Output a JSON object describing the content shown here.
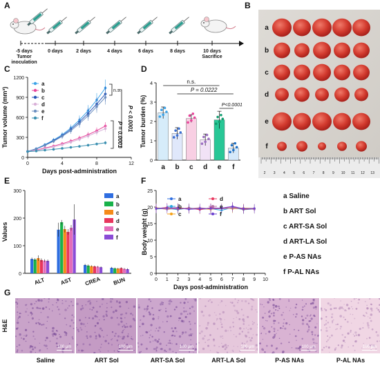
{
  "panel_letters": [
    "A",
    "B",
    "C",
    "D",
    "E",
    "F",
    "G"
  ],
  "timeline": {
    "days": [
      "-5 days\nTumor\ninoculation",
      "0 days",
      "2 days",
      "4 days",
      "6 days",
      "8 days",
      "10 days\nSacrifice"
    ]
  },
  "tumor_photo": {
    "row_labels": [
      "a",
      "b",
      "c",
      "d",
      "e",
      "f"
    ],
    "ruler_numbers": [
      "2",
      "3",
      "4",
      "5",
      "6",
      "7",
      "8",
      "9",
      "10",
      "11",
      "12",
      "13"
    ]
  },
  "legend_text": [
    "a Saline",
    "b ART Sol",
    "c ART-SA Sol",
    "d ART-LA Sol",
    "e P-AS NAs",
    "f P-AL NAs"
  ],
  "colors": {
    "a": "#3da3e8",
    "b": "#e8449a",
    "c": "#2553b5",
    "d": "#d9b0d8",
    "e": "#6c8fc0",
    "f": "#3a8fb0"
  },
  "panelC": {
    "ylabel": "Tumor volume (mm³)",
    "xlabel": "Days post-administration",
    "yticks": [
      "0",
      "300",
      "600",
      "900",
      "1200"
    ],
    "xticks": [
      "0",
      "4",
      "8",
      "12"
    ],
    "annotations": [
      "n.s.",
      "P < 0.0001",
      "P = 0.0001"
    ],
    "legend": [
      "a",
      "b",
      "c",
      "d",
      "e",
      "f"
    ]
  },
  "panelD": {
    "ylabel": "Tumor burden (%)",
    "yticks": [
      "0",
      "1",
      "2",
      "3",
      "4"
    ],
    "categories": [
      "a",
      "b",
      "c",
      "d",
      "e",
      "f"
    ],
    "annotations": [
      "n.s.",
      "P = 0.0222",
      "P<0.0001"
    ]
  },
  "panelE": {
    "ylabel": "Values",
    "yticks": [
      "0",
      "100",
      "200",
      "300"
    ],
    "categories": [
      "ALT",
      "AST",
      "CREA",
      "BUN"
    ],
    "legend": [
      "a",
      "b",
      "c",
      "d",
      "e",
      "f"
    ]
  },
  "panelF": {
    "ylabel": "Body weight (g)",
    "xlabel": "Days post-administration",
    "yticks": [
      "0",
      "5",
      "10",
      "15",
      "20",
      "25"
    ],
    "xticks": [
      "0",
      "1",
      "2",
      "3",
      "4",
      "5",
      "6",
      "7",
      "8",
      "9",
      "10"
    ],
    "legend": [
      "a",
      "b",
      "c",
      "d",
      "e",
      "f"
    ]
  },
  "panelG": {
    "side_label": "H&E",
    "scale": "100 μm",
    "labels": [
      "Saline",
      "ART Sol",
      "ART-SA Sol",
      "ART-LA Sol",
      "P-AS NAs",
      "P-AL NAs"
    ],
    "tints": [
      "#c9a3c9",
      "#c49bc4",
      "#cca7cd",
      "#e6c8dc",
      "#d9b3d3",
      "#f0d6e4"
    ]
  },
  "chart_data": [
    {
      "type": "line",
      "title": "",
      "xlabel": "Days post-administration",
      "ylabel": "Tumor volume (mm³)",
      "xlim": [
        0,
        12
      ],
      "ylim": [
        0,
        1200
      ],
      "x": [
        0,
        1,
        2,
        3,
        4,
        5,
        6,
        7,
        8,
        9
      ],
      "series": [
        {
          "name": "a",
          "values": [
            90,
            130,
            190,
            260,
            340,
            440,
            560,
            700,
            860,
            1040
          ]
        },
        {
          "name": "b",
          "values": [
            88,
            110,
            140,
            170,
            205,
            245,
            290,
            340,
            400,
            470
          ]
        },
        {
          "name": "c",
          "values": [
            90,
            128,
            182,
            250,
            325,
            420,
            530,
            660,
            800,
            950
          ]
        },
        {
          "name": "d",
          "values": [
            88,
            105,
            130,
            158,
            190,
            228,
            270,
            320,
            375,
            430
          ]
        },
        {
          "name": "e",
          "values": [
            90,
            125,
            178,
            240,
            315,
            400,
            505,
            625,
            760,
            900
          ]
        },
        {
          "name": "f",
          "values": [
            85,
            95,
            108,
            120,
            135,
            150,
            165,
            182,
            200,
            218
          ]
        }
      ]
    },
    {
      "type": "bar",
      "title": "",
      "ylabel": "Tumor burden (%)",
      "ylim": [
        0,
        4
      ],
      "categories": [
        "a",
        "b",
        "c",
        "d",
        "e",
        "f"
      ],
      "values": [
        2.45,
        1.38,
        2.15,
        1.05,
        2.08,
        0.62
      ],
      "errors": [
        0.3,
        0.3,
        0.2,
        0.3,
        0.45,
        0.25
      ]
    },
    {
      "type": "bar",
      "title": "",
      "ylabel": "Values",
      "ylim": [
        0,
        300
      ],
      "categories": [
        "ALT",
        "AST",
        "CREA",
        "BUN"
      ],
      "series": [
        {
          "name": "a",
          "values": [
            52,
            158,
            30,
            20
          ],
          "errors": [
            5,
            25,
            4,
            3
          ]
        },
        {
          "name": "b",
          "values": [
            50,
            185,
            28,
            18
          ],
          "errors": [
            5,
            8,
            4,
            3
          ]
        },
        {
          "name": "c",
          "values": [
            55,
            160,
            26,
            17
          ],
          "errors": [
            10,
            12,
            3,
            3
          ]
        },
        {
          "name": "d",
          "values": [
            48,
            150,
            25,
            19
          ],
          "errors": [
            6,
            10,
            3,
            3
          ]
        },
        {
          "name": "e",
          "values": [
            46,
            165,
            24,
            16
          ],
          "errors": [
            5,
            10,
            3,
            3
          ]
        },
        {
          "name": "f",
          "values": [
            45,
            195,
            22,
            15
          ],
          "errors": [
            5,
            55,
            3,
            3
          ]
        }
      ]
    },
    {
      "type": "line",
      "title": "",
      "xlabel": "Days post-administration",
      "ylabel": "Body weight (g)",
      "xlim": [
        0,
        10
      ],
      "ylim": [
        0,
        25
      ],
      "x": [
        0,
        1,
        2,
        3,
        4,
        5,
        6,
        7,
        8,
        9
      ],
      "series": [
        {
          "name": "a",
          "values": [
            19.6,
            19.8,
            19.5,
            19.6,
            19.4,
            19.7,
            19.5,
            19.6,
            19.4,
            19.5
          ]
        },
        {
          "name": "b",
          "values": [
            19.4,
            19.6,
            19.2,
            19.8,
            19.3,
            19.5,
            19.0,
            19.9,
            19.2,
            19.4
          ]
        },
        {
          "name": "c",
          "values": [
            19.8,
            19.5,
            19.9,
            19.4,
            19.6,
            19.3,
            19.8,
            19.5,
            19.7,
            19.6
          ]
        },
        {
          "name": "d",
          "values": [
            19.5,
            19.9,
            19.4,
            19.7,
            19.2,
            19.8,
            19.6,
            20.1,
            19.3,
            19.5
          ]
        },
        {
          "name": "e",
          "values": [
            19.7,
            19.3,
            19.6,
            19.5,
            19.8,
            19.4,
            19.5,
            19.7,
            19.6,
            19.3
          ]
        },
        {
          "name": "f",
          "values": [
            19.6,
            19.7,
            19.8,
            19.3,
            19.5,
            19.6,
            19.7,
            20.2,
            19.5,
            19.6
          ]
        }
      ]
    }
  ]
}
